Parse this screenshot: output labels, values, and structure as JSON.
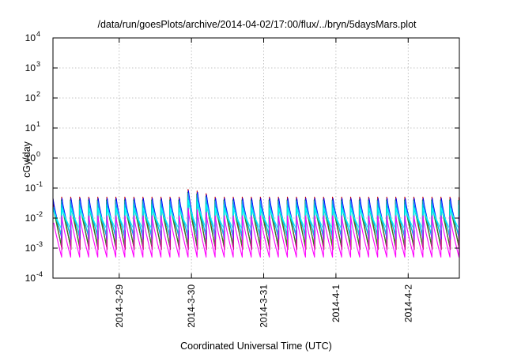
{
  "chart_data": {
    "type": "line",
    "title": "/data/run/goesPlots/archive/2014-04-02/17:00/flux/../bryn/5daysMars.plot",
    "xlabel": "Coordinated Universal Time (UTC)",
    "ylabel": "cGy/day",
    "y_scale": "log",
    "ylim": [
      0.0001,
      10000
    ],
    "y_ticks": [
      {
        "value": 0.0001,
        "base": "10",
        "exp": "-4"
      },
      {
        "value": 0.001,
        "base": "10",
        "exp": "-3"
      },
      {
        "value": 0.01,
        "base": "10",
        "exp": "-2"
      },
      {
        "value": 0.1,
        "base": "10",
        "exp": "-1"
      },
      {
        "value": 1,
        "base": "10",
        "exp": "0"
      },
      {
        "value": 10,
        "base": "10",
        "exp": "1"
      },
      {
        "value": 100,
        "base": "10",
        "exp": "2"
      },
      {
        "value": 1000,
        "base": "10",
        "exp": "3"
      },
      {
        "value": 10000,
        "base": "10",
        "exp": "4"
      }
    ],
    "xlim": [
      "2014-03-28T02:00",
      "2014-04-02T17:00"
    ],
    "x_ticks": [
      {
        "value": "2014-03-29T00:00",
        "label": "2014-3-29"
      },
      {
        "value": "2014-03-30T00:00",
        "label": "2014-3-30"
      },
      {
        "value": "2014-03-31T00:00",
        "label": "2014-3-31"
      },
      {
        "value": "2014-04-01T00:00",
        "label": "2014-4-1"
      },
      {
        "value": "2014-04-02T00:00",
        "label": "2014-4-2"
      }
    ],
    "grid": true,
    "legend": "none",
    "pattern_period_hours": 3,
    "series": [
      {
        "color": "#8b0000",
        "peak": 0.045,
        "trough": 0.0009
      },
      {
        "color": "#cc0000",
        "peak": 0.05,
        "trough": 0.0011
      },
      {
        "color": "#228b22",
        "peak": 0.04,
        "trough": 0.0013
      },
      {
        "color": "#0000ff",
        "peak": 0.045,
        "trough": 0.002
      },
      {
        "color": "#1e90ff",
        "peak": 0.038,
        "trough": 0.0024
      },
      {
        "color": "#00ced1",
        "peak": 0.028,
        "trough": 0.003
      },
      {
        "color": "#00ffff",
        "peak": 0.022,
        "trough": 0.004
      },
      {
        "color": "#ff00ff",
        "peak": 0.012,
        "trough": 0.0005
      }
    ],
    "enhanced_peaks": [
      {
        "time": "2014-03-29T22:00",
        "value": 0.09
      },
      {
        "time": "2014-03-30T01:00",
        "value": 0.08
      },
      {
        "time": "2014-03-30T04:00",
        "value": 0.065
      }
    ]
  }
}
